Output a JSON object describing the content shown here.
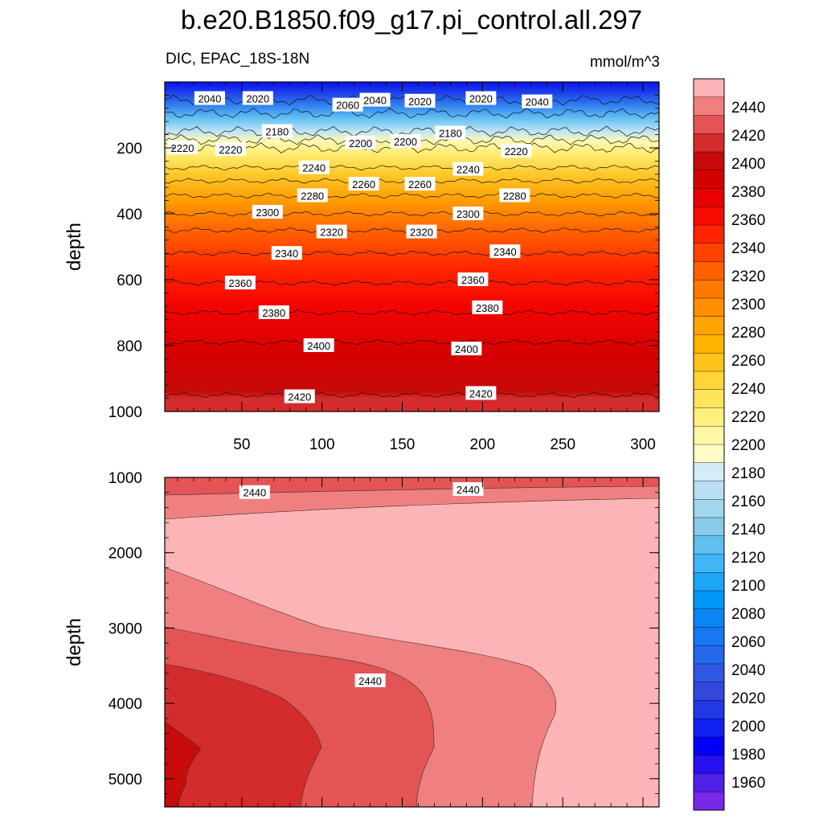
{
  "title": "b.e20.B1850.f09_g17.pi_control.all.297",
  "chart_data": [
    {
      "type": "contour",
      "panel": "upper",
      "variable_region": "DIC, EPAC_18S-18N",
      "units": "mmol/m^3",
      "xlabel": "",
      "ylabel": "depth",
      "xlim": [
        2,
        310
      ],
      "ylim": [
        0,
        1000
      ],
      "y_reversed": true,
      "xticks": [
        50,
        100,
        150,
        200,
        250,
        300
      ],
      "yticks": [
        200,
        400,
        600,
        800,
        1000
      ],
      "contour_levels": [
        {
          "value": 2040,
          "depth": 55
        },
        {
          "value": 2100,
          "depth": 95
        },
        {
          "value": 2180,
          "depth": 150
        },
        {
          "value": 2200,
          "depth": 175
        },
        {
          "value": 2220,
          "depth": 200
        },
        {
          "value": 2240,
          "depth": 260
        },
        {
          "value": 2260,
          "depth": 300
        },
        {
          "value": 2280,
          "depth": 345
        },
        {
          "value": 2300,
          "depth": 400
        },
        {
          "value": 2320,
          "depth": 450
        },
        {
          "value": 2340,
          "depth": 520
        },
        {
          "value": 2360,
          "depth": 610
        },
        {
          "value": 2380,
          "depth": 700
        },
        {
          "value": 2400,
          "depth": 790
        },
        {
          "value": 2420,
          "depth": 950
        }
      ],
      "contour_labels": [
        {
          "text": "2040",
          "x": 30,
          "depth": 50
        },
        {
          "text": "2020",
          "x": 60,
          "depth": 50
        },
        {
          "text": "2060",
          "x": 116,
          "depth": 70
        },
        {
          "text": "2040",
          "x": 133,
          "depth": 55
        },
        {
          "text": "2020",
          "x": 161,
          "depth": 58
        },
        {
          "text": "2020",
          "x": 199,
          "depth": 50
        },
        {
          "text": "2040",
          "x": 234,
          "depth": 60
        },
        {
          "text": "2180",
          "x": 72,
          "depth": 150
        },
        {
          "text": "2200",
          "x": 124,
          "depth": 185
        },
        {
          "text": "2200",
          "x": 152,
          "depth": 180
        },
        {
          "text": "2180",
          "x": 180,
          "depth": 155
        },
        {
          "text": "2220",
          "x": 13,
          "depth": 200
        },
        {
          "text": "2220",
          "x": 43,
          "depth": 205
        },
        {
          "text": "2220",
          "x": 221,
          "depth": 210
        },
        {
          "text": "2240",
          "x": 95,
          "depth": 260
        },
        {
          "text": "2240",
          "x": 191,
          "depth": 265
        },
        {
          "text": "2260",
          "x": 126,
          "depth": 310
        },
        {
          "text": "2260",
          "x": 161,
          "depth": 310
        },
        {
          "text": "2280",
          "x": 94,
          "depth": 345
        },
        {
          "text": "2280",
          "x": 220,
          "depth": 345
        },
        {
          "text": "2300",
          "x": 66,
          "depth": 395
        },
        {
          "text": "2300",
          "x": 191,
          "depth": 400
        },
        {
          "text": "2320",
          "x": 106,
          "depth": 455
        },
        {
          "text": "2320",
          "x": 162,
          "depth": 455
        },
        {
          "text": "2340",
          "x": 78,
          "depth": 520
        },
        {
          "text": "2340",
          "x": 214,
          "depth": 515
        },
        {
          "text": "2360",
          "x": 49,
          "depth": 610
        },
        {
          "text": "2360",
          "x": 194,
          "depth": 600
        },
        {
          "text": "2380",
          "x": 70,
          "depth": 700
        },
        {
          "text": "2380",
          "x": 203,
          "depth": 685
        },
        {
          "text": "2400",
          "x": 98,
          "depth": 800
        },
        {
          "text": "2400",
          "x": 190,
          "depth": 810
        },
        {
          "text": "2420",
          "x": 86,
          "depth": 955
        },
        {
          "text": "2420",
          "x": 199,
          "depth": 945
        }
      ]
    },
    {
      "type": "contour",
      "panel": "lower",
      "xlabel": "",
      "ylabel": "depth",
      "xlim": [
        2,
        310
      ],
      "ylim": [
        1000,
        5375
      ],
      "y_reversed": true,
      "yticks": [
        1000,
        2000,
        3000,
        4000,
        5000
      ],
      "contour_labels": [
        {
          "text": "2440",
          "x": 58,
          "depth": 1200
        },
        {
          "text": "2440",
          "x": 191,
          "depth": 1160
        },
        {
          "text": "2440",
          "x": 130,
          "depth": 3700
        }
      ]
    }
  ],
  "colorbar": {
    "labels": [
      "2440",
      "2420",
      "2400",
      "2380",
      "2360",
      "2340",
      "2320",
      "2300",
      "2280",
      "2260",
      "2240",
      "2220",
      "2200",
      "2180",
      "2160",
      "2140",
      "2120",
      "2100",
      "2080",
      "2060",
      "2040",
      "2020",
      "2000",
      "1980",
      "1960"
    ],
    "colors_top_to_bottom": [
      "#fdb4b6",
      "#f08080",
      "#e45454",
      "#d42c2c",
      "#c80b0b",
      "#d40000",
      "#e60000",
      "#f60c00",
      "#ff2400",
      "#ff4200",
      "#ff6000",
      "#ff7800",
      "#ff8e00",
      "#ffa400",
      "#ffb400",
      "#ffc41a",
      "#ffd53a",
      "#ffe45c",
      "#fff07e",
      "#fff9a6",
      "#fffcc8",
      "#d2ecf6",
      "#b8e0f2",
      "#a0d6ee",
      "#86cbea",
      "#60bfef",
      "#40b6f6",
      "#1ca6f6",
      "#0096f6",
      "#0a86f4",
      "#1878f0",
      "#2468ec",
      "#3058e4",
      "#3448dc",
      "#2038e8",
      "#1020f0",
      "#0000f8",
      "#2810f0",
      "#5020e8",
      "#7828e8"
    ]
  }
}
